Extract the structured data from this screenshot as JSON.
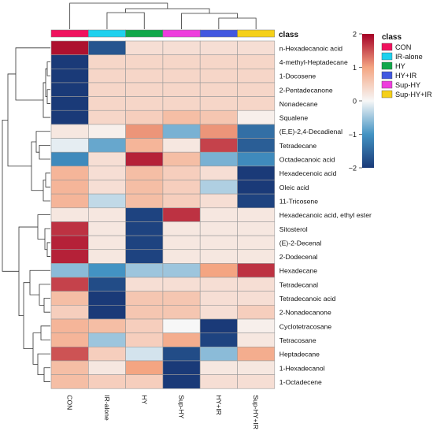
{
  "chart_data": {
    "type": "heatmap",
    "title": "",
    "columns": [
      "CON",
      "IR-alone",
      "HY",
      "Sup-HY",
      "HY+IR",
      "Sup-HY+IR"
    ],
    "rows": [
      "n-Hexadecanoic acid",
      "4-methyl-Heptadecane",
      "1-Docosene",
      "2-Pentadecanone",
      "Nonadecane",
      "Squalene",
      "(E,E)-2,4-Decadienal",
      "Tetradecane",
      "Octadecanoic acid",
      "Hexadecenoic acid",
      "Oleic acid",
      "11-Tricosene",
      "Hexadecanoic acid, ethyl ester",
      "Sitosterol",
      "(E)-2-Decenal",
      "2-Dodecenal",
      "Hexadecane",
      "Tetradecanal",
      "Tetradecanoic acid",
      "2-Nonadecanone",
      "Cyclotetracosane",
      "Tetracosane",
      "Heptadecane",
      "1-Hexadecanol",
      "1-Octadecene"
    ],
    "values": [
      [
        1.9,
        -1.7,
        0.3,
        0.3,
        0.3,
        0.3
      ],
      [
        -2.0,
        0.4,
        0.4,
        0.4,
        0.4,
        0.4
      ],
      [
        -2.0,
        0.4,
        0.4,
        0.4,
        0.4,
        0.4
      ],
      [
        -2.0,
        0.4,
        0.4,
        0.4,
        0.4,
        0.4
      ],
      [
        -2.0,
        0.4,
        0.4,
        0.4,
        0.4,
        0.4
      ],
      [
        -2.0,
        0.4,
        0.5,
        0.7,
        0.6,
        0.1
      ],
      [
        0.2,
        0.1,
        1.1,
        -0.7,
        1.1,
        -1.4
      ],
      [
        -0.1,
        -0.8,
        0.8,
        0.2,
        1.6,
        -1.6
      ],
      [
        -1.1,
        0.3,
        1.8,
        0.7,
        -0.7,
        -1.1
      ],
      [
        0.8,
        0.3,
        0.7,
        0.5,
        0.3,
        -2.0
      ],
      [
        0.8,
        0.3,
        0.7,
        0.5,
        -0.4,
        -2.0
      ],
      [
        0.8,
        -0.3,
        0.7,
        0.5,
        0.3,
        -1.9
      ],
      [
        0.2,
        0.2,
        -1.9,
        1.7,
        0.2,
        0.2
      ],
      [
        1.7,
        0.2,
        -1.9,
        0.2,
        0.2,
        0.2
      ],
      [
        1.8,
        0.2,
        -1.9,
        0.2,
        0.2,
        0.2
      ],
      [
        1.8,
        0.2,
        -1.9,
        0.2,
        0.2,
        0.2
      ],
      [
        -0.6,
        -1.0,
        -0.5,
        -0.5,
        1.0,
        1.7
      ],
      [
        1.6,
        -1.8,
        0.3,
        0.3,
        0.3,
        0.3
      ],
      [
        0.7,
        -2.0,
        0.6,
        0.6,
        0.3,
        0.3
      ],
      [
        0.5,
        -2.0,
        0.6,
        0.6,
        0.3,
        0.5
      ],
      [
        0.8,
        0.7,
        0.5,
        0.0,
        -2.0,
        0.1
      ],
      [
        0.8,
        -0.5,
        0.5,
        0.9,
        -1.9,
        0.2
      ],
      [
        1.5,
        0.5,
        -0.2,
        -1.8,
        -0.6,
        0.9
      ],
      [
        0.7,
        0.2,
        1.0,
        -2.0,
        0.2,
        0.2
      ],
      [
        0.7,
        0.5,
        0.5,
        -2.0,
        0.3,
        0.3
      ]
    ],
    "class_track": {
      "label": "class",
      "colors": [
        "#f0125e",
        "#1ed1ee",
        "#11a84a",
        "#ee3ddd",
        "#4258e0",
        "#f5d018"
      ]
    },
    "legend": {
      "title": "class",
      "entries": [
        {
          "name": "CON",
          "color": "#f0125e"
        },
        {
          "name": "IR-alone",
          "color": "#1ed1ee"
        },
        {
          "name": "HY",
          "color": "#11a84a"
        },
        {
          "name": "HY+IR",
          "color": "#4258e0"
        },
        {
          "name": "Sup-HY",
          "color": "#ee3ddd"
        },
        {
          "name": "Sup-HY+IR",
          "color": "#f5d018"
        }
      ]
    },
    "colorbar": {
      "range": [
        -2,
        2
      ],
      "ticks": [
        2,
        1,
        0,
        -1,
        -2
      ],
      "tick_labels": [
        "2",
        "1",
        "0",
        "−1",
        "−2"
      ],
      "colors": [
        "#1a3a78",
        "#1f77b4",
        "#ffffff",
        "#f4a582",
        "#a50026"
      ]
    },
    "grid": true
  }
}
